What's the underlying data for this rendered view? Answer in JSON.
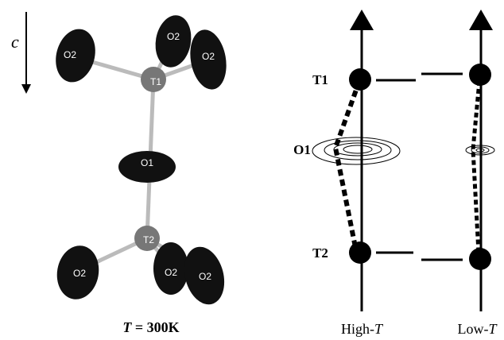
{
  "left": {
    "axis_label": "c",
    "atoms": {
      "T1": "T1",
      "T2": "T2",
      "O1": "O1",
      "O2": [
        "O2",
        "O2",
        "O2",
        "O2",
        "O2",
        "O2"
      ]
    },
    "caption": {
      "var": "T",
      "rest": " = 300K"
    }
  },
  "right": {
    "labels": {
      "T1": "T1",
      "O1": "O1",
      "T2": "T2"
    },
    "captions": [
      {
        "prefix": "High-",
        "var": "T"
      },
      {
        "prefix": "Low-",
        "var": "T"
      }
    ]
  }
}
